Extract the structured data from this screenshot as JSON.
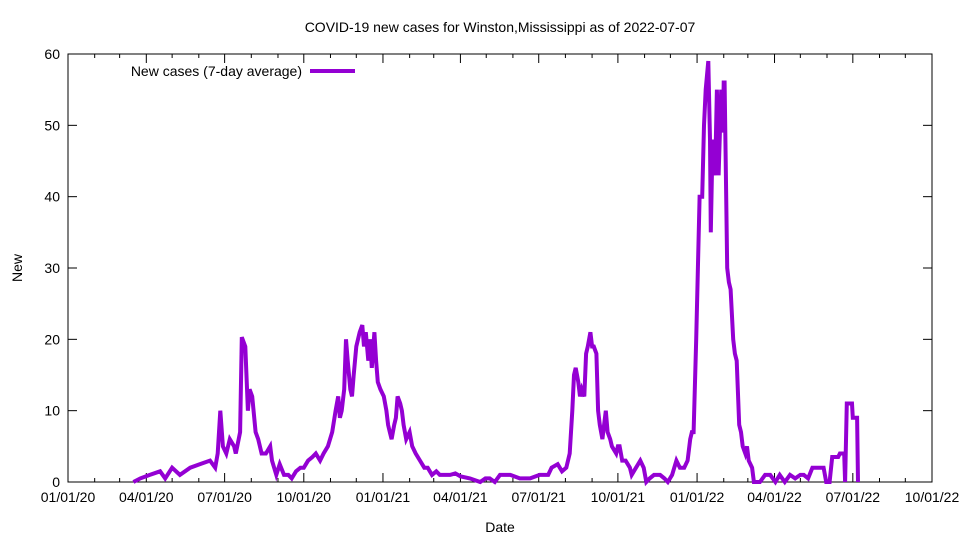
{
  "chart_data": {
    "type": "line",
    "title": "COVID-19 new cases for Winston,Mississippi as of 2022-07-07",
    "xlabel": "Date",
    "ylabel": "New",
    "x_unit": "days since 2020-01-01",
    "xlim": [
      0,
      1004
    ],
    "ylim": [
      0,
      60
    ],
    "yticks": [
      0,
      10,
      20,
      30,
      40,
      50,
      60
    ],
    "xticks": [
      {
        "day": 0,
        "label": "01/01/20"
      },
      {
        "day": 91,
        "label": "04/01/20"
      },
      {
        "day": 182,
        "label": "07/01/20"
      },
      {
        "day": 274,
        "label": "10/01/20"
      },
      {
        "day": 366,
        "label": "01/01/21"
      },
      {
        "day": 456,
        "label": "04/01/21"
      },
      {
        "day": 547,
        "label": "07/01/21"
      },
      {
        "day": 639,
        "label": "10/01/21"
      },
      {
        "day": 731,
        "label": "01/01/22"
      },
      {
        "day": 821,
        "label": "04/01/22"
      },
      {
        "day": 912,
        "label": "07/01/22"
      },
      {
        "day": 1004,
        "label": "10/01/22"
      }
    ],
    "minor_xticks": [
      31,
      60,
      121,
      152,
      213,
      244,
      305,
      335,
      397,
      425,
      486,
      517,
      578,
      609,
      670,
      700,
      762,
      790,
      851,
      882,
      943,
      973
    ],
    "grid": false,
    "legend_position": "top-left",
    "series": [
      {
        "name": "New cases (7-day average)",
        "color": "#9400d3",
        "points": [
          [
            76,
            0
          ],
          [
            84,
            0.5
          ],
          [
            95,
            1
          ],
          [
            107,
            1.5
          ],
          [
            113,
            0.5
          ],
          [
            121,
            2
          ],
          [
            130,
            1
          ],
          [
            142,
            2
          ],
          [
            153,
            2.5
          ],
          [
            165,
            3
          ],
          [
            171,
            2
          ],
          [
            174,
            4
          ],
          [
            177,
            10
          ],
          [
            180,
            5
          ],
          [
            184,
            4
          ],
          [
            188,
            6
          ],
          [
            193,
            5
          ],
          [
            195,
            4
          ],
          [
            200,
            7
          ],
          [
            202,
            20.3
          ],
          [
            206,
            19
          ],
          [
            209,
            10
          ],
          [
            211,
            13
          ],
          [
            214,
            12
          ],
          [
            218,
            7
          ],
          [
            221,
            6
          ],
          [
            225,
            4
          ],
          [
            230,
            4
          ],
          [
            235,
            5
          ],
          [
            237,
            3
          ],
          [
            242,
            1
          ],
          [
            246,
            2.5
          ],
          [
            251,
            1
          ],
          [
            256,
            1
          ],
          [
            260,
            0.5
          ],
          [
            265,
            1.5
          ],
          [
            270,
            2
          ],
          [
            274,
            2
          ],
          [
            279,
            3
          ],
          [
            284,
            3.5
          ],
          [
            288,
            4
          ],
          [
            293,
            3
          ],
          [
            297,
            4
          ],
          [
            302,
            5
          ],
          [
            307,
            7
          ],
          [
            311,
            10
          ],
          [
            314,
            12
          ],
          [
            316,
            9
          ],
          [
            318,
            10
          ],
          [
            321,
            13
          ],
          [
            323,
            20
          ],
          [
            325,
            17
          ],
          [
            328,
            13
          ],
          [
            330,
            12
          ],
          [
            332,
            15
          ],
          [
            335,
            19
          ],
          [
            337,
            20
          ],
          [
            339,
            21
          ],
          [
            342,
            22
          ],
          [
            344,
            19
          ],
          [
            346,
            21
          ],
          [
            349,
            17
          ],
          [
            351,
            20
          ],
          [
            353,
            16
          ],
          [
            356,
            21
          ],
          [
            358,
            17
          ],
          [
            360,
            14
          ],
          [
            363,
            13
          ],
          [
            367,
            12
          ],
          [
            370,
            10
          ],
          [
            372,
            8
          ],
          [
            374,
            7
          ],
          [
            376,
            6
          ],
          [
            379,
            8
          ],
          [
            381,
            9
          ],
          [
            383,
            12
          ],
          [
            386,
            11
          ],
          [
            388,
            10
          ],
          [
            390,
            8
          ],
          [
            393,
            6
          ],
          [
            397,
            7
          ],
          [
            400,
            5
          ],
          [
            404,
            4
          ],
          [
            409,
            3
          ],
          [
            414,
            2
          ],
          [
            418,
            2
          ],
          [
            423,
            1
          ],
          [
            428,
            1.5
          ],
          [
            432,
            1
          ],
          [
            444,
            1
          ],
          [
            450,
            1.2
          ],
          [
            456,
            0.8
          ],
          [
            467,
            0.5
          ],
          [
            479,
            0
          ],
          [
            485,
            0.5
          ],
          [
            490,
            0.5
          ],
          [
            496,
            0
          ],
          [
            502,
            1
          ],
          [
            514,
            1
          ],
          [
            525,
            0.5
          ],
          [
            537,
            0.5
          ],
          [
            548,
            1
          ],
          [
            558,
            1
          ],
          [
            562,
            2
          ],
          [
            569,
            2.5
          ],
          [
            574,
            1.5
          ],
          [
            579,
            2
          ],
          [
            581,
            3
          ],
          [
            583,
            4
          ],
          [
            586,
            10
          ],
          [
            588,
            15
          ],
          [
            590,
            16
          ],
          [
            593,
            14
          ],
          [
            595,
            12
          ],
          [
            597,
            13
          ],
          [
            600,
            12
          ],
          [
            602,
            18
          ],
          [
            604,
            19
          ],
          [
            607,
            21
          ],
          [
            609,
            19
          ],
          [
            611,
            19
          ],
          [
            614,
            18
          ],
          [
            616,
            10
          ],
          [
            618,
            8
          ],
          [
            621,
            6
          ],
          [
            623,
            8
          ],
          [
            625,
            10
          ],
          [
            627,
            7
          ],
          [
            630,
            6
          ],
          [
            632,
            5
          ],
          [
            637,
            4
          ],
          [
            639,
            5
          ],
          [
            641,
            5
          ],
          [
            644,
            3
          ],
          [
            648,
            3
          ],
          [
            653,
            2
          ],
          [
            655,
            1
          ],
          [
            660,
            2
          ],
          [
            665,
            3
          ],
          [
            669,
            2
          ],
          [
            672,
            0
          ],
          [
            676,
            0.5
          ],
          [
            681,
            1
          ],
          [
            688,
            1
          ],
          [
            693,
            0.5
          ],
          [
            697,
            0
          ],
          [
            702,
            1
          ],
          [
            707,
            3
          ],
          [
            711,
            2
          ],
          [
            716,
            2
          ],
          [
            720,
            3
          ],
          [
            723,
            6
          ],
          [
            725,
            7
          ],
          [
            727,
            7
          ],
          [
            730,
            20
          ],
          [
            732,
            30
          ],
          [
            734,
            40
          ],
          [
            737,
            40
          ],
          [
            739,
            50
          ],
          [
            741,
            55
          ],
          [
            744,
            59
          ],
          [
            746,
            48
          ],
          [
            747,
            35
          ],
          [
            749,
            48
          ],
          [
            752,
            43
          ],
          [
            754,
            55
          ],
          [
            756,
            43
          ],
          [
            759,
            55
          ],
          [
            761,
            49
          ],
          [
            762,
            56
          ],
          [
            763,
            56
          ],
          [
            766,
            30
          ],
          [
            768,
            28
          ],
          [
            770,
            27
          ],
          [
            773,
            20
          ],
          [
            775,
            18
          ],
          [
            777,
            17
          ],
          [
            780,
            8
          ],
          [
            782,
            7
          ],
          [
            784,
            5
          ],
          [
            787,
            4
          ],
          [
            789,
            5
          ],
          [
            791,
            3
          ],
          [
            795,
            2
          ],
          [
            797,
            0
          ],
          [
            804,
            0
          ],
          [
            810,
            1
          ],
          [
            816,
            1
          ],
          [
            822,
            0
          ],
          [
            827,
            1
          ],
          [
            833,
            0
          ],
          [
            839,
            1
          ],
          [
            845,
            0.5
          ],
          [
            851,
            1
          ],
          [
            855,
            1
          ],
          [
            860,
            0.5
          ],
          [
            865,
            2
          ],
          [
            872,
            2
          ],
          [
            878,
            2
          ],
          [
            881,
            0
          ],
          [
            885,
            0
          ],
          [
            888,
            3.5
          ],
          [
            895,
            3.5
          ],
          [
            897,
            4
          ],
          [
            902,
            4
          ],
          [
            903,
            0
          ],
          [
            905,
            11
          ],
          [
            911,
            11
          ],
          [
            912,
            9
          ],
          [
            917,
            9
          ],
          [
            918,
            0
          ]
        ]
      }
    ]
  }
}
